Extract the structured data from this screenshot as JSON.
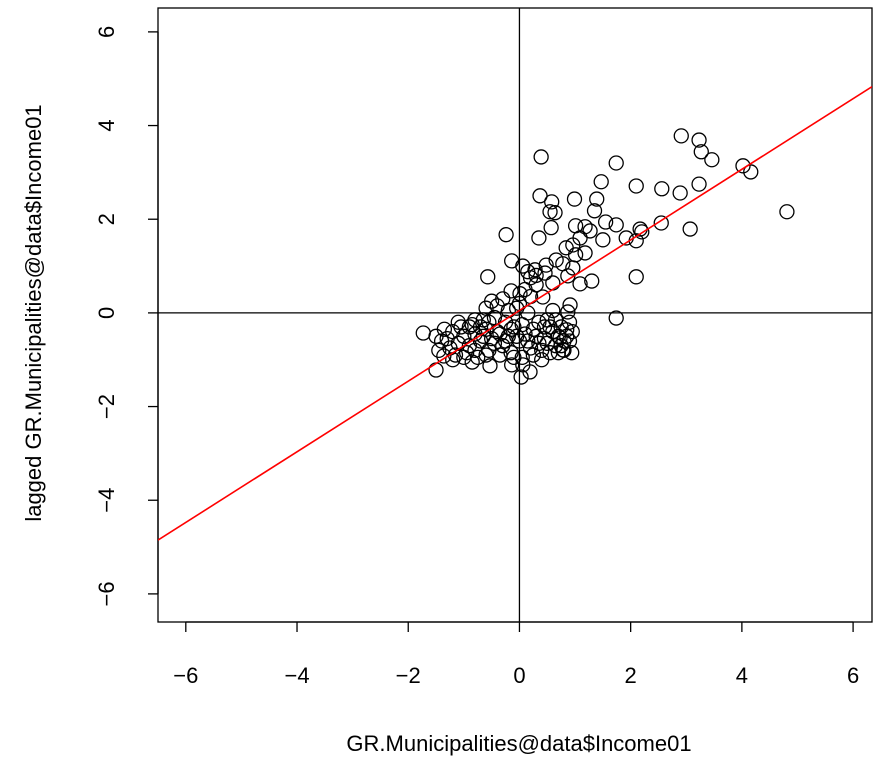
{
  "chart_data": {
    "type": "scatter",
    "xlabel": "GR.Municipalities@data$Income01",
    "ylabel": "lagged GR.Municipalities@data$Income01",
    "xlim": [
      -6.5,
      6.34
    ],
    "ylim": [
      -6.6,
      6.51
    ],
    "xticks": [
      {
        "value": -6,
        "label": "−6"
      },
      {
        "value": -4,
        "label": "−4"
      },
      {
        "value": -2,
        "label": "−2"
      },
      0,
      2,
      4,
      6
    ],
    "yticks": [
      {
        "value": -6,
        "label": "−6"
      },
      {
        "value": -4,
        "label": "−4"
      },
      {
        "value": -2,
        "label": "−2"
      },
      0,
      2,
      4,
      6
    ],
    "marker_color": "#000000",
    "hlines": [
      0
    ],
    "vlines": [
      0
    ],
    "fit_line": {
      "slope": 0.754,
      "intercept": 0.05,
      "color": "#ff0000"
    },
    "x": [
      2.91,
      3.23,
      3.27,
      3.46,
      0.39,
      1.74,
      1.47,
      4.02,
      4.16,
      4.81,
      3.23,
      2.1,
      2.56,
      2.89,
      0.37,
      0.58,
      0.99,
      1.39,
      0.55,
      0.64,
      1.35,
      1.55,
      1.74,
      2.55,
      3.07,
      2.17,
      1.18,
      1.27,
      0.35,
      0.57,
      1.01,
      1.09,
      1.5,
      1.92,
      2.1,
      2.2,
      -0.24,
      0.84,
      0.96,
      1.01,
      1.18,
      -0.14,
      0.06,
      0.48,
      0.66,
      0.78,
      0.15,
      0.28,
      -0.57,
      2.1,
      0.6,
      0.87,
      1.09,
      1.3,
      0.46,
      0.96,
      1.74,
      -0.15,
      0.01,
      0.42,
      0.91,
      0.87,
      0.85,
      0.73,
      0.94,
      0.78,
      0.06,
      0.19,
      0.03,
      -1.5,
      -1.73,
      -0.53,
      -0.14,
      -1.36,
      -1.3,
      -1.2,
      -1.1,
      -1.0,
      -0.9,
      -0.8,
      -0.7,
      -0.6,
      -0.5,
      -0.4,
      -0.3,
      -0.2,
      -0.1,
      0.0,
      0.1,
      0.2,
      0.3,
      0.4,
      0.5,
      0.6,
      0.7,
      0.8,
      -1.25,
      -1.15,
      -1.05,
      -0.95,
      -0.85,
      -0.75,
      -0.65,
      -0.55,
      -0.45,
      -0.35,
      -0.25,
      -0.15,
      -0.05,
      0.05,
      0.15,
      0.25,
      0.35,
      0.45,
      0.55,
      0.65,
      0.75,
      0.85,
      -1.4,
      -1.35,
      -1.2,
      -1.0,
      -0.85,
      -0.7,
      -0.6,
      -0.5,
      -0.4,
      -0.3,
      -0.2,
      -0.1,
      0.0,
      0.1,
      0.2,
      0.3,
      0.4,
      0.5,
      0.6,
      0.7,
      0.8,
      0.9,
      0.95,
      -1.5,
      -1.45,
      -1.1,
      -0.9,
      -0.8,
      -0.65,
      -0.55,
      -0.45,
      -0.35,
      -0.25,
      -0.15,
      -0.05,
      0.05,
      0.15,
      0.25,
      0.35,
      0.45,
      0.55,
      0.65,
      0.75,
      0.9,
      0.3,
      0.2,
      -0.6,
      -0.8
    ],
    "y": [
      3.78,
      3.69,
      3.44,
      3.27,
      3.33,
      3.2,
      2.8,
      3.14,
      3.01,
      2.16,
      2.75,
      2.71,
      2.65,
      2.56,
      2.5,
      2.37,
      2.43,
      2.43,
      2.16,
      2.14,
      2.18,
      1.94,
      1.88,
      1.92,
      1.79,
      1.79,
      1.84,
      1.75,
      1.6,
      1.82,
      1.86,
      1.6,
      1.56,
      1.6,
      1.54,
      1.73,
      1.67,
      1.39,
      1.45,
      1.24,
      1.28,
      1.11,
      1.0,
      1.02,
      1.13,
      1.05,
      0.88,
      0.92,
      0.77,
      0.77,
      0.64,
      0.79,
      0.62,
      0.68,
      0.85,
      0.96,
      -0.11,
      0.47,
      0.41,
      0.34,
      0.17,
      0.02,
      -0.36,
      -0.53,
      -0.85,
      -0.79,
      -1.11,
      -1.26,
      -1.37,
      -1.22,
      -0.43,
      -1.13,
      -1.11,
      -0.92,
      -0.55,
      -0.4,
      -0.65,
      -0.5,
      -0.7,
      -0.45,
      -0.6,
      -0.35,
      -0.55,
      -0.4,
      -0.7,
      -0.5,
      -0.3,
      -0.6,
      -0.45,
      -0.75,
      -0.5,
      -0.8,
      -0.65,
      -0.4,
      -0.85,
      -0.6,
      -0.75,
      -0.9,
      -0.3,
      -0.85,
      -0.25,
      -0.95,
      -0.15,
      -0.8,
      -0.1,
      -0.9,
      -0.2,
      -0.85,
      0.1,
      -0.95,
      0.0,
      -0.9,
      -0.2,
      -0.3,
      -0.85,
      -0.7,
      -0.3,
      -0.5,
      -0.6,
      -0.35,
      -1.0,
      -0.95,
      -1.05,
      -0.3,
      -0.9,
      0.25,
      0.15,
      0.3,
      0.05,
      -0.95,
      0.2,
      0.5,
      0.35,
      0.6,
      -1.0,
      -0.15,
      0.05,
      -0.5,
      -0.8,
      -0.2,
      -0.4,
      -0.5,
      -0.8,
      -0.2,
      -0.3,
      -0.8,
      -0.5,
      -0.2,
      -0.65,
      -0.45,
      -0.6,
      -0.35,
      -0.5,
      -0.25,
      -0.6,
      -0.35,
      -0.65,
      -0.55,
      -0.3,
      -0.15,
      -0.7,
      -0.6,
      0.8,
      0.75,
      0.1,
      -0.15
    ]
  }
}
